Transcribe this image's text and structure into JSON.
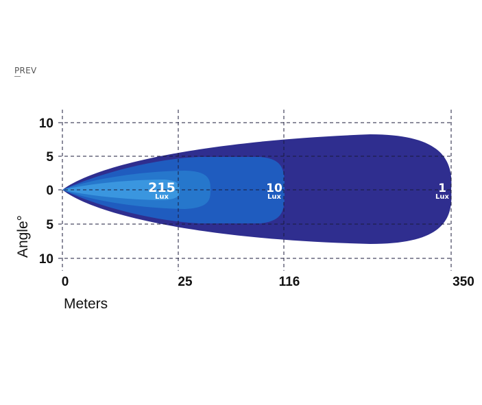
{
  "nav": {
    "prev_label": "PREV"
  },
  "chart_data": {
    "type": "area",
    "title": "",
    "xlabel": "Meters",
    "ylabel": "Angle°",
    "x_ticks": [
      "0",
      "25",
      "116",
      "350"
    ],
    "y_ticks": [
      "10",
      "5",
      "0",
      "5",
      "10"
    ],
    "grid": true,
    "series": [
      {
        "name": "1 Lux",
        "value": "1",
        "unit": "Lux",
        "reach_m": 350,
        "max_half_angle_deg": 8,
        "color": "#2f2e8f"
      },
      {
        "name": "10 Lux",
        "value": "10",
        "unit": "Lux",
        "reach_m": 116,
        "max_half_angle_deg": 5,
        "color": "#1f5cbf"
      },
      {
        "name": "215 Lux",
        "value": "215",
        "unit": "Lux",
        "reach_m": 25,
        "max_half_angle_deg": 2.5,
        "color": "#3a96df"
      }
    ],
    "colors": {
      "grid": "#1a1a3a",
      "text": "#111111",
      "label_text": "#ffffff",
      "mid_zone": "#2677cc"
    }
  }
}
